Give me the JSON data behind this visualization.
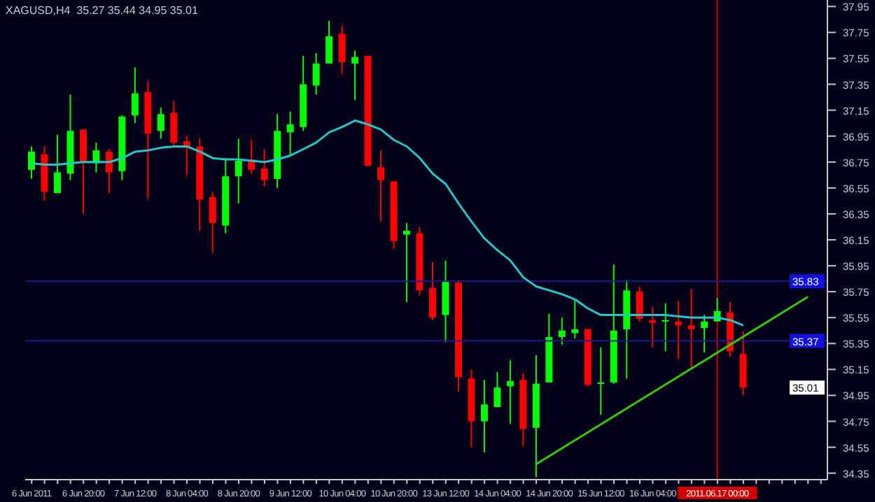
{
  "chart_data": {
    "type": "candlestick",
    "title": "XAGUSD,H4  35.27 35.44 34.95 35.01",
    "categories": [
      "6 Jun 2011",
      null,
      null,
      null,
      "6 Jun 20:00",
      null,
      null,
      null,
      "7 Jun 12:00",
      null,
      null,
      null,
      "8 Jun 04:00",
      null,
      null,
      null,
      "8 Jun 20:00",
      null,
      null,
      null,
      "9 Jun 12:00",
      null,
      null,
      null,
      "10 Jun 04:00",
      null,
      null,
      null,
      "10 Jun 20:00",
      null,
      null,
      null,
      "13 Jun 12:00",
      null,
      null,
      null,
      "14 Jun 04:00",
      null,
      null,
      null,
      "14 Jun 20:00",
      null,
      null,
      null,
      "15 Jun 12:00",
      null,
      null,
      null,
      "16 Jun 04:00",
      null,
      null,
      null,
      null,
      "2011.06.17 00:00",
      null,
      null,
      null,
      null,
      null,
      null,
      null,
      null
    ],
    "ohlc": [
      [
        36.69,
        36.87,
        36.62,
        36.83
      ],
      [
        36.81,
        36.87,
        36.45,
        36.52
      ],
      [
        36.51,
        36.96,
        36.51,
        36.67
      ],
      [
        36.66,
        37.27,
        36.61,
        36.99
      ],
      [
        37.0,
        37.0,
        36.35,
        36.75
      ],
      [
        36.74,
        36.9,
        36.67,
        36.84
      ],
      [
        36.83,
        36.85,
        36.51,
        36.67
      ],
      [
        36.68,
        37.11,
        36.61,
        37.1
      ],
      [
        37.11,
        37.48,
        37.05,
        37.28
      ],
      [
        37.29,
        37.37,
        36.47,
        36.97
      ],
      [
        36.99,
        37.17,
        36.93,
        37.12
      ],
      [
        37.13,
        37.22,
        36.87,
        36.9
      ],
      [
        36.91,
        36.95,
        36.65,
        36.86
      ],
      [
        36.87,
        36.93,
        36.22,
        36.46
      ],
      [
        36.48,
        36.52,
        36.05,
        36.28
      ],
      [
        36.26,
        36.78,
        36.2,
        36.64
      ],
      [
        36.64,
        36.93,
        36.43,
        36.76
      ],
      [
        36.77,
        36.92,
        36.66,
        36.69
      ],
      [
        36.7,
        36.85,
        36.56,
        36.61
      ],
      [
        36.62,
        37.12,
        36.55,
        36.99
      ],
      [
        36.98,
        37.14,
        36.8,
        37.04
      ],
      [
        37.02,
        37.57,
        36.99,
        37.35
      ],
      [
        37.34,
        37.59,
        37.27,
        37.51
      ],
      [
        37.51,
        37.84,
        37.51,
        37.72
      ],
      [
        37.74,
        37.8,
        37.43,
        37.52
      ],
      [
        37.51,
        37.61,
        37.23,
        37.56
      ],
      [
        37.57,
        37.57,
        36.72,
        36.72
      ],
      [
        36.71,
        36.84,
        36.29,
        36.61
      ],
      [
        36.6,
        36.6,
        36.08,
        36.14
      ],
      [
        36.19,
        36.28,
        35.67,
        36.22
      ],
      [
        36.2,
        36.25,
        35.72,
        35.76
      ],
      [
        35.78,
        35.98,
        35.53,
        35.55
      ],
      [
        35.57,
        35.99,
        35.36,
        35.83
      ],
      [
        35.82,
        35.84,
        34.98,
        35.09
      ],
      [
        35.08,
        35.15,
        34.55,
        34.75
      ],
      [
        34.75,
        35.07,
        34.51,
        34.88
      ],
      [
        34.86,
        35.13,
        34.86,
        35.01
      ],
      [
        35.02,
        35.22,
        34.73,
        35.06
      ],
      [
        35.07,
        35.12,
        34.56,
        34.69
      ],
      [
        34.7,
        35.26,
        34.32,
        35.04
      ],
      [
        35.05,
        35.58,
        35.05,
        35.4
      ],
      [
        35.4,
        35.55,
        35.34,
        35.45
      ],
      [
        35.43,
        35.69,
        35.39,
        35.46
      ],
      [
        35.46,
        35.46,
        35.02,
        35.03
      ],
      [
        35.04,
        35.32,
        34.8,
        35.05
      ],
      [
        35.05,
        35.96,
        35.04,
        35.45
      ],
      [
        35.46,
        35.84,
        35.08,
        35.76
      ],
      [
        35.75,
        35.79,
        35.52,
        35.54
      ],
      [
        35.53,
        35.63,
        35.32,
        35.51
      ],
      [
        35.52,
        35.66,
        35.29,
        35.53
      ],
      [
        35.52,
        35.68,
        35.23,
        35.49
      ],
      [
        35.49,
        35.77,
        35.16,
        35.46
      ],
      [
        35.47,
        35.57,
        35.28,
        35.52
      ],
      [
        35.52,
        35.7,
        35.52,
        35.6
      ],
      [
        35.59,
        35.67,
        35.25,
        35.29
      ],
      [
        35.27,
        35.44,
        34.95,
        35.01
      ],
      null,
      null,
      null,
      null,
      null,
      null
    ],
    "colors": [
      "#00ff00",
      "#ff0000",
      "#00ff00",
      "#00ff00",
      "#ff0000",
      "#00ff00",
      "#ff0000",
      "#00ff00",
      "#00ff00",
      "#ff0000",
      "#00ff00",
      "#ff0000",
      "#ff0000",
      "#ff0000",
      "#ff0000",
      "#00ff00",
      "#00ff00",
      "#ff0000",
      "#ff0000",
      "#00ff00",
      "#00ff00",
      "#00ff00",
      "#00ff00",
      "#00ff00",
      "#ff0000",
      "#00ff00",
      "#ff0000",
      "#ff0000",
      "#ff0000",
      "#00ff00",
      "#ff0000",
      "#ff0000",
      "#00ff00",
      "#ff0000",
      "#ff0000",
      "#00ff00",
      "#00ff00",
      "#00ff00",
      "#ff0000",
      "#00ff00",
      "#00ff00",
      "#00ff00",
      "#00ff00",
      "#ff0000",
      "#00ff00",
      "#00ff00",
      "#00ff00",
      "#ff0000",
      "#ff0000",
      "#00ff00",
      "#ff0000",
      "#ff0000",
      "#00ff00",
      "#00ff00",
      "#ff0000",
      "#ff0000",
      null,
      null,
      null,
      null,
      null,
      null
    ],
    "series": [
      {
        "type": "line",
        "color": "#20c8c8",
        "values": [
          36.74,
          36.73,
          36.73,
          36.74,
          36.75,
          36.75,
          36.75,
          36.78,
          36.83,
          36.84,
          36.86,
          36.87,
          36.87,
          36.83,
          36.78,
          36.77,
          36.77,
          36.76,
          36.75,
          36.77,
          36.8,
          36.85,
          36.9,
          36.98,
          37.02,
          37.07,
          37.04,
          37.0,
          36.92,
          36.87,
          36.78,
          36.66,
          36.58,
          36.43,
          36.29,
          36.16,
          36.07,
          35.99,
          35.86,
          35.79,
          35.76,
          35.73,
          35.69,
          35.62,
          35.57,
          35.57,
          35.57,
          35.57,
          35.57,
          35.57,
          35.56,
          35.55,
          35.55,
          35.55,
          35.53,
          35.49,
          null,
          null,
          null,
          null,
          null,
          null
        ]
      },
      {
        "type": "line",
        "color": "#33cc00",
        "values": [
          null,
          null,
          null,
          null,
          null,
          null,
          null,
          null,
          null,
          null,
          null,
          null,
          null,
          null,
          null,
          null,
          null,
          null,
          null,
          null,
          null,
          null,
          null,
          null,
          null,
          null,
          null,
          null,
          null,
          null,
          null,
          null,
          null,
          null,
          null,
          null,
          null,
          null,
          null,
          34.42,
          null,
          null,
          null,
          null,
          null,
          null,
          null,
          null,
          null,
          null,
          null,
          null,
          null,
          null,
          null,
          null,
          null,
          null,
          null,
          null,
          35.71,
          null
        ]
      }
    ],
    "ylim": [
      34.3,
      38.0
    ],
    "yticks": [
      37.95,
      37.75,
      37.55,
      37.35,
      37.15,
      36.95,
      36.75,
      36.55,
      36.35,
      36.15,
      35.95,
      35.75,
      35.55,
      35.35,
      35.15,
      34.95,
      34.75,
      34.55,
      34.35
    ],
    "ref_lines": [
      {
        "axis": "y",
        "value": 35.83,
        "label": "35.83",
        "color": "#1c1c90"
      },
      {
        "axis": "y",
        "value": 35.37,
        "label": "35.37",
        "color": "#1c1c90"
      },
      {
        "axis": "x",
        "value": "2011.06.17 00:00",
        "color": "#d00000"
      }
    ],
    "annotations": [
      {
        "text": "35.01",
        "y": 35.01
      }
    ]
  }
}
